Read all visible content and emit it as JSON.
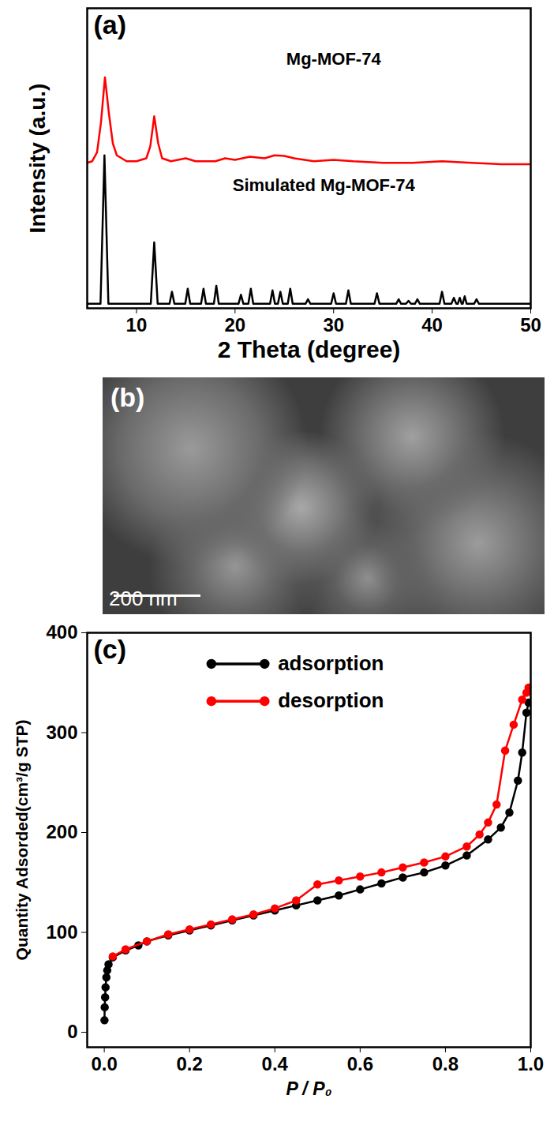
{
  "chart_data": [
    {
      "type": "line",
      "panel": "(a)",
      "x_label": "2 Theta (degree)",
      "y_label": "Intensity (a.u.)",
      "xlim": [
        5,
        50
      ],
      "xticks": [
        10,
        20,
        30,
        40,
        50
      ],
      "ylim": [
        0,
        100
      ],
      "yticks": [],
      "tick_labels": "x",
      "annotations": [
        {
          "text": "Mg-MOF-74",
          "x": 30,
          "y": 83
        },
        {
          "text": "Simulated Mg-MOF-74",
          "x": 29,
          "y": 41
        }
      ],
      "series": [
        {
          "name": "Mg-MOF-74",
          "color": "#ff0000",
          "x": [
            5,
            5.5,
            6,
            6.4,
            6.8,
            7.2,
            7.6,
            8,
            9,
            10,
            11,
            11.4,
            11.8,
            12.2,
            12.6,
            13.5,
            15,
            16,
            18,
            19,
            20,
            21.5,
            23,
            24,
            25,
            26,
            28,
            30,
            32,
            35,
            38,
            41,
            44,
            47,
            50
          ],
          "values": [
            48.5,
            49,
            52,
            62,
            77,
            65,
            55,
            51,
            49,
            49,
            50,
            54,
            64,
            55,
            50,
            49,
            50,
            49,
            49,
            50,
            49.5,
            50.5,
            50,
            51,
            50.8,
            50,
            49,
            49.5,
            49,
            48.5,
            48.5,
            49,
            48.5,
            48,
            48
          ]
        },
        {
          "name": "Simulated Mg-MOF-74",
          "color": "#000000",
          "x": [
            5,
            6.35,
            6.75,
            7.15,
            11.45,
            11.8,
            12.15,
            13.35,
            13.6,
            13.85,
            14.95,
            15.2,
            15.45,
            16.55,
            16.8,
            17.05,
            17.85,
            18.1,
            18.35,
            20.35,
            20.6,
            20.85,
            21.35,
            21.6,
            21.85,
            23.55,
            23.8,
            24.05,
            24.35,
            24.6,
            24.85,
            25.35,
            25.6,
            25.85,
            27.15,
            27.4,
            27.65,
            29.75,
            30.0,
            30.25,
            31.25,
            31.5,
            31.75,
            34.15,
            34.4,
            34.65,
            36.35,
            36.6,
            36.85,
            37.35,
            37.6,
            37.85,
            38.25,
            38.5,
            38.75,
            40.75,
            41.0,
            41.25,
            41.95,
            42.2,
            42.45,
            42.6,
            42.8,
            43.0,
            43.1,
            43.3,
            43.5,
            44.25,
            44.5,
            44.75,
            50
          ],
          "values": [
            1.5,
            1.5,
            51,
            1.5,
            1.5,
            22,
            1.5,
            1.5,
            5.5,
            1.5,
            1.5,
            6.5,
            1.5,
            1.5,
            6.5,
            1.5,
            1.5,
            7.5,
            1.5,
            1.5,
            4.5,
            1.5,
            1.5,
            6.5,
            1.5,
            1.5,
            6,
            1.5,
            1.5,
            5.5,
            1.5,
            1.5,
            6.5,
            1.5,
            1.5,
            3,
            1.5,
            1.5,
            5,
            1.5,
            1.5,
            6,
            1.5,
            1.5,
            5,
            1.5,
            1.5,
            3,
            1.5,
            1.5,
            2.5,
            1.5,
            1.5,
            3,
            1.5,
            1.5,
            5.5,
            1.5,
            1.5,
            3.5,
            1.5,
            1.5,
            3.5,
            1.5,
            1.5,
            4,
            1.5,
            1.5,
            3,
            1.5,
            1.5
          ]
        }
      ]
    },
    {
      "type": "image",
      "panel": "(b)",
      "scale_bar": "200 nm"
    },
    {
      "type": "line",
      "panel": "(c)",
      "x_label": "P / P₀",
      "y_label": "Quantity Adsorded(cm³/g STP)",
      "xlim": [
        -0.04,
        1.0
      ],
      "xticks": [
        {
          "value": 0,
          "label": "0.0"
        },
        {
          "value": 0.2,
          "label": "0.2"
        },
        {
          "value": 0.4,
          "label": "0.4"
        },
        {
          "value": 0.6,
          "label": "0.6"
        },
        {
          "value": 0.8,
          "label": "0.8"
        },
        {
          "value": 1.0,
          "label": "1.0"
        }
      ],
      "ylim": [
        -15,
        400
      ],
      "yticks": [
        0,
        100,
        200,
        300,
        400
      ],
      "legend": "top-left",
      "series": [
        {
          "name": "adsorption",
          "color": "#000000",
          "marker": "circle",
          "x": [
            0.0005,
            0.001,
            0.002,
            0.003,
            0.005,
            0.007,
            0.01,
            0.02,
            0.05,
            0.08,
            0.1,
            0.15,
            0.2,
            0.25,
            0.3,
            0.35,
            0.4,
            0.45,
            0.5,
            0.55,
            0.6,
            0.65,
            0.7,
            0.75,
            0.8,
            0.85,
            0.9,
            0.93,
            0.95,
            0.97,
            0.98,
            0.99,
            0.995
          ],
          "values": [
            12,
            25,
            35,
            45,
            55,
            62,
            68,
            75,
            82,
            87,
            91,
            97,
            102,
            107,
            112,
            117,
            122,
            127,
            132,
            137,
            143,
            149,
            155,
            160,
            167,
            177,
            193,
            205,
            220,
            252,
            280,
            320,
            330
          ]
        },
        {
          "name": "desorption",
          "color": "#ff0000",
          "marker": "circle",
          "x": [
            0.995,
            0.99,
            0.98,
            0.96,
            0.94,
            0.92,
            0.9,
            0.88,
            0.85,
            0.8,
            0.75,
            0.7,
            0.65,
            0.6,
            0.55,
            0.5,
            0.45,
            0.4,
            0.35,
            0.3,
            0.25,
            0.2,
            0.15,
            0.1,
            0.05,
            0.02
          ],
          "values": [
            345,
            340,
            333,
            308,
            282,
            228,
            210,
            198,
            186,
            176,
            170,
            165,
            160,
            156,
            152,
            148,
            132,
            124,
            118,
            113,
            108,
            103,
            98,
            91,
            83,
            76
          ]
        }
      ]
    }
  ]
}
